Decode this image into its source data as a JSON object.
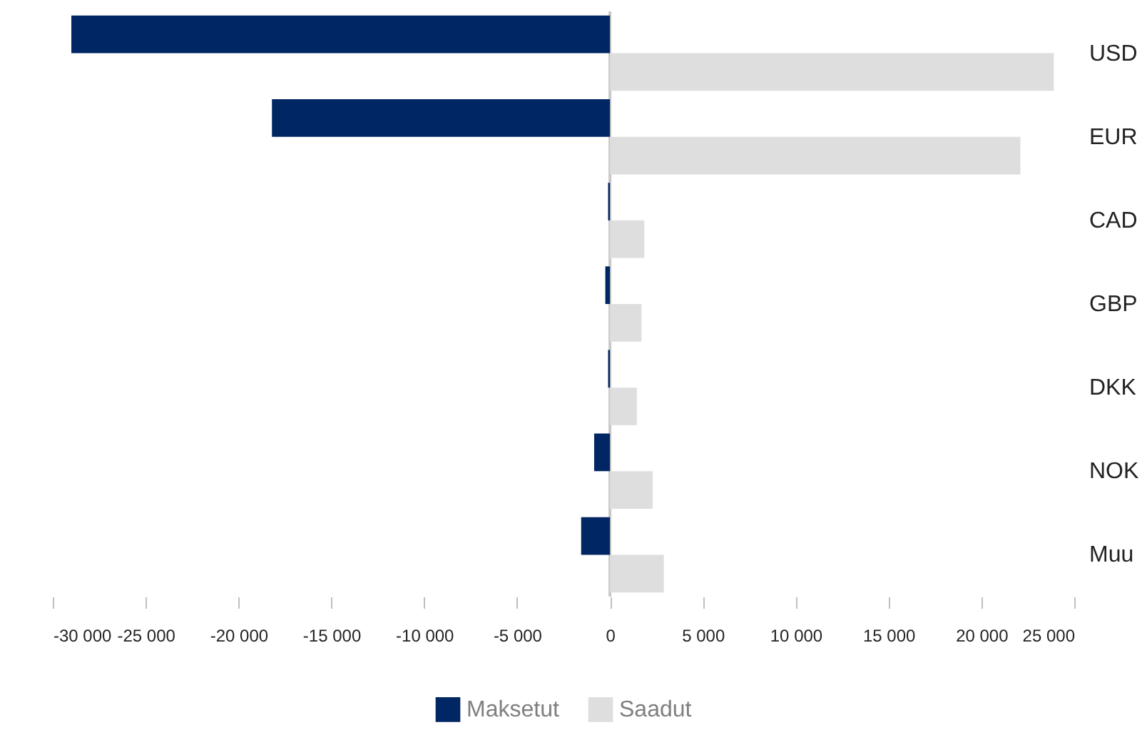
{
  "chart_data": {
    "type": "bar",
    "orientation": "horizontal",
    "categories": [
      "USD",
      "EUR",
      "CAD",
      "GBP",
      "DKK",
      "NOK",
      "Muu"
    ],
    "series": [
      {
        "name": "Maksetut",
        "color": "#002663",
        "values": [
          -29000,
          -18200,
          -100,
          -250,
          -100,
          -850,
          -1550
        ]
      },
      {
        "name": "Saadut",
        "color": "#dedede",
        "values": [
          23900,
          22100,
          1850,
          1700,
          1450,
          2300,
          2900
        ]
      }
    ],
    "xlim": [
      -30000,
      25000
    ],
    "xticks": [
      {
        "value": -30000,
        "label": "-30 000"
      },
      {
        "value": -25000,
        "label": "-25 000"
      },
      {
        "value": -20000,
        "label": "-20 000"
      },
      {
        "value": -15000,
        "label": "-15 000"
      },
      {
        "value": -10000,
        "label": "-10 000"
      },
      {
        "value": -5000,
        "label": "-5 000"
      },
      0,
      {
        "value": 5000,
        "label": "5 000"
      },
      {
        "value": 10000,
        "label": "10 000"
      },
      {
        "value": 15000,
        "label": "15 000"
      },
      {
        "value": 20000,
        "label": "20 000"
      },
      {
        "value": 25000,
        "label": "25 000"
      }
    ],
    "ref_lines": [
      {
        "axis": "x",
        "value": 0,
        "color": "#c8c8c8"
      }
    ],
    "legend": "bottom",
    "grid": false
  }
}
